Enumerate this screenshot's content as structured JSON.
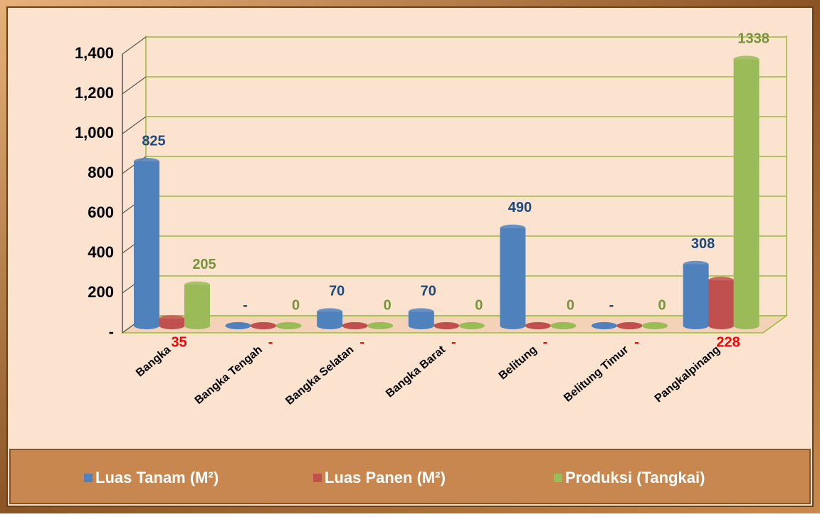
{
  "chart_data": {
    "type": "bar",
    "categories": [
      "Bangka",
      "Bangka Tengah",
      "Bangka Selatan",
      "Bangka Barat",
      "Belitung",
      "Belitung Timur",
      "Pangkalpinang"
    ],
    "series": [
      {
        "name": "Luas Tanam (M²)",
        "color": "#4f81bd",
        "values": [
          825,
          0,
          70,
          70,
          490,
          0,
          308
        ],
        "value_labels": [
          "825",
          "-",
          "70",
          "70",
          "490",
          "-",
          "308"
        ]
      },
      {
        "name": "Luas Panen (M²)",
        "color": "#c0504d",
        "values": [
          35,
          0,
          0,
          0,
          0,
          0,
          228
        ],
        "value_labels": [
          "35",
          "-",
          "-",
          "-",
          "-",
          "-",
          "228"
        ]
      },
      {
        "name": "Produksi (Tangkai)",
        "color": "#9bbb59",
        "values": [
          205,
          0,
          0,
          0,
          0,
          0,
          1338
        ]
      }
    ],
    "ylim": [
      0,
      1400
    ],
    "yticks": [
      {
        "value": 0,
        "label": "-"
      },
      200,
      400,
      600,
      800,
      {
        "value": 1000,
        "label": "1,000"
      },
      {
        "value": 1200,
        "label": "1,200"
      },
      {
        "value": 1400,
        "label": "1,400"
      }
    ],
    "grid": true
  }
}
